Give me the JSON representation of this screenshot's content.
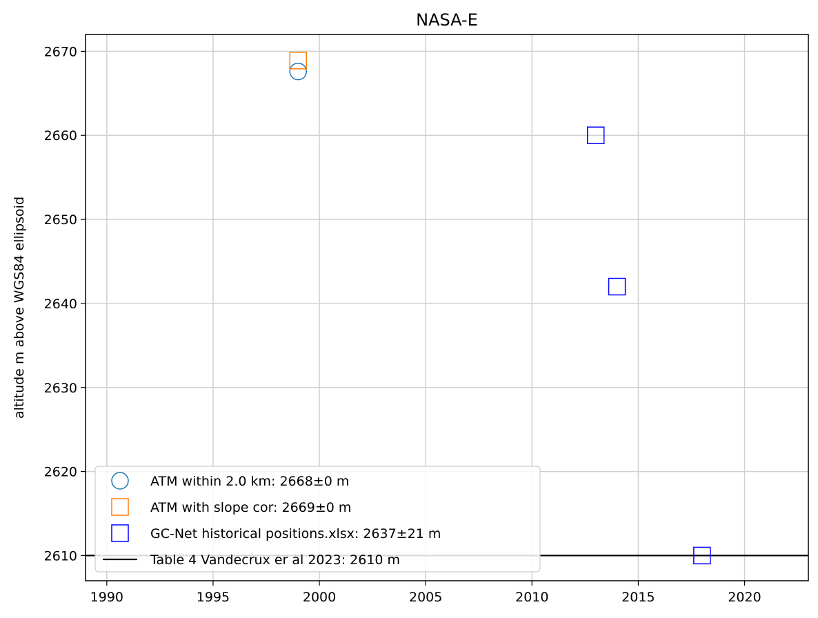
{
  "chart_data": {
    "type": "scatter",
    "title": "NASA-E",
    "xlabel": "",
    "ylabel": "altitude m above WGS84 ellipsoid",
    "xlim": [
      1989,
      2023
    ],
    "ylim": [
      2607,
      2672
    ],
    "xticks": [
      1990,
      1995,
      2000,
      2005,
      2010,
      2015,
      2020
    ],
    "yticks": [
      2610,
      2620,
      2630,
      2640,
      2650,
      2660,
      2670
    ],
    "grid": true,
    "legend_position": "lower-left",
    "series": [
      {
        "name": "ATM within 2.0 km: 2668±0 m",
        "marker": "circle",
        "color": "#1f77b4",
        "points": [
          {
            "x": 1999,
            "y": 2667.6
          }
        ]
      },
      {
        "name": "ATM with slope cor: 2669±0 m",
        "marker": "square",
        "color": "#ff7f0e",
        "points": [
          {
            "x": 1999,
            "y": 2668.9
          }
        ]
      },
      {
        "name": "GC-Net historical positions.xlsx: 2637±21 m",
        "marker": "square",
        "color": "#0000ff",
        "points": [
          {
            "x": 2013,
            "y": 2660
          },
          {
            "x": 2014,
            "y": 2642
          },
          {
            "x": 2018,
            "y": 2610
          }
        ]
      },
      {
        "name": "Table 4 Vandecrux er al 2023: 2610 m",
        "marker": "hline",
        "color": "#000000",
        "y": 2610
      }
    ]
  }
}
